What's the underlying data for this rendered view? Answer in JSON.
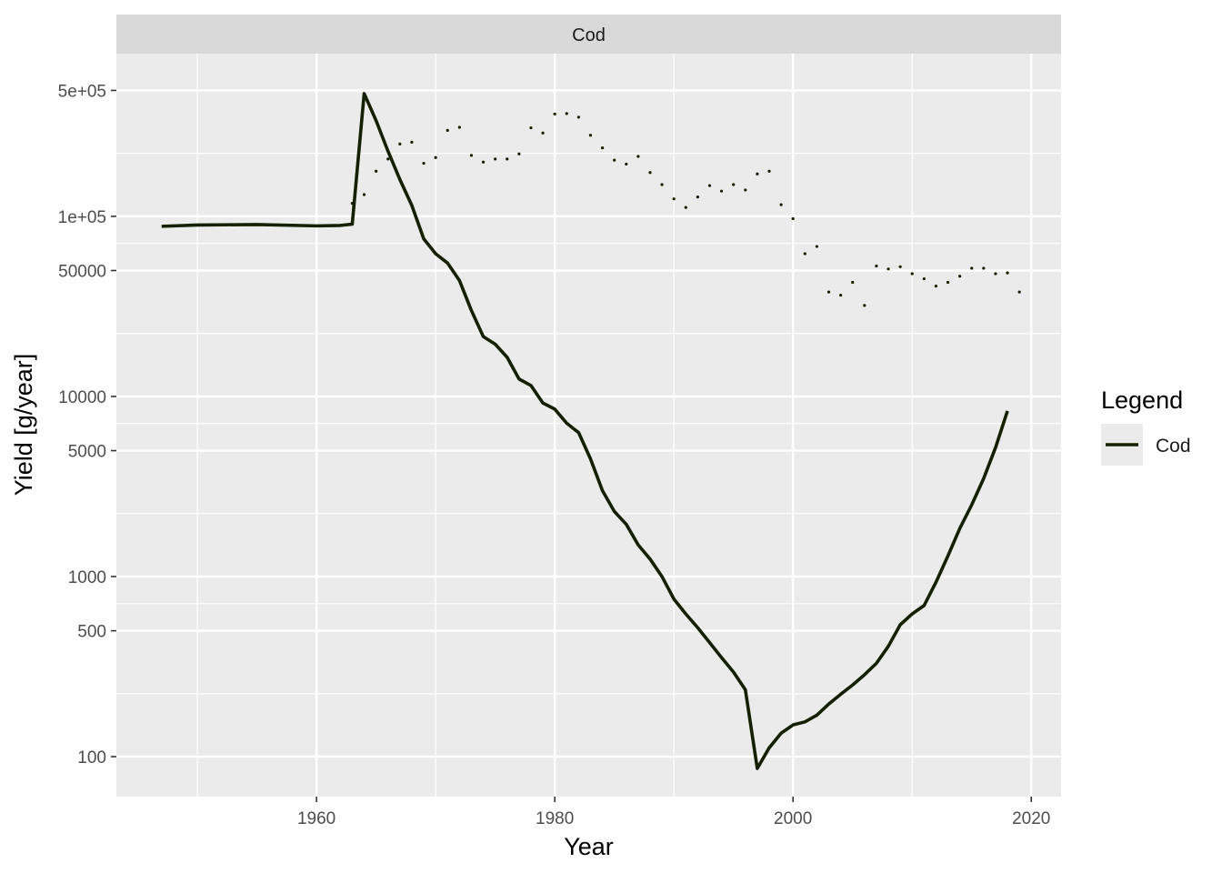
{
  "chart_data": {
    "type": "line",
    "facet_label": "Cod",
    "xlabel": "Year",
    "ylabel": "Yield [g/year]",
    "x_scale": "linear",
    "y_scale": "log10",
    "xlim": [
      1943.2,
      2022.5
    ],
    "ylim": [
      60,
      800000
    ],
    "x_ticks": [
      1960,
      1980,
      2000,
      2020
    ],
    "x_tick_labels": [
      "1960",
      "1980",
      "2000",
      "2020"
    ],
    "y_ticks": [
      100,
      500,
      1000,
      5000,
      10000,
      50000,
      100000,
      500000
    ],
    "y_tick_labels": [
      "100",
      "500",
      "1000",
      "5000",
      "10000",
      "50000",
      "1e+05",
      "5e+05"
    ],
    "grid": true,
    "legend": {
      "title": "Legend",
      "position": "right",
      "entries": [
        {
          "label": "Cod",
          "color": "#142000",
          "style": "solid"
        }
      ]
    },
    "series": [
      {
        "name": "Cod",
        "style": "solid",
        "color": "#142000",
        "points": [
          [
            1947,
            88000
          ],
          [
            1950,
            89500
          ],
          [
            1955,
            90000
          ],
          [
            1960,
            88500
          ],
          [
            1962,
            89000
          ],
          [
            1963,
            90500
          ],
          [
            1964,
            480000
          ],
          [
            1965,
            340000
          ],
          [
            1966,
            230000
          ],
          [
            1967,
            160000
          ],
          [
            1968,
            115000
          ],
          [
            1969,
            75000
          ],
          [
            1970,
            62000
          ],
          [
            1971,
            55000
          ],
          [
            1972,
            44000
          ],
          [
            1973,
            30000
          ],
          [
            1974,
            21500
          ],
          [
            1975,
            19500
          ],
          [
            1976,
            16500
          ],
          [
            1977,
            12500
          ],
          [
            1978,
            11500
          ],
          [
            1979,
            9200
          ],
          [
            1980,
            8500
          ],
          [
            1981,
            7100
          ],
          [
            1982,
            6300
          ],
          [
            1983,
            4500
          ],
          [
            1984,
            3000
          ],
          [
            1985,
            2300
          ],
          [
            1986,
            1950
          ],
          [
            1987,
            1500
          ],
          [
            1988,
            1250
          ],
          [
            1989,
            1000
          ],
          [
            1990,
            750
          ],
          [
            1991,
            620
          ],
          [
            1992,
            520
          ],
          [
            1993,
            430
          ],
          [
            1994,
            355
          ],
          [
            1995,
            295
          ],
          [
            1996,
            235
          ],
          [
            1997,
            86
          ],
          [
            1998,
            112
          ],
          [
            1999,
            135
          ],
          [
            2000,
            150
          ],
          [
            2001,
            156
          ],
          [
            2002,
            170
          ],
          [
            2003,
            196
          ],
          [
            2004,
            222
          ],
          [
            2005,
            250
          ],
          [
            2006,
            285
          ],
          [
            2007,
            330
          ],
          [
            2008,
            410
          ],
          [
            2009,
            540
          ],
          [
            2010,
            620
          ],
          [
            2011,
            690
          ],
          [
            2012,
            930
          ],
          [
            2013,
            1300
          ],
          [
            2014,
            1850
          ],
          [
            2015,
            2500
          ],
          [
            2016,
            3500
          ],
          [
            2017,
            5200
          ],
          [
            2018,
            8300
          ]
        ]
      },
      {
        "name": "",
        "style": "dotted",
        "color": "#142000",
        "points": [
          [
            1963,
            118000
          ],
          [
            1964,
            132000
          ],
          [
            1965,
            178000
          ],
          [
            1966,
            208000
          ],
          [
            1967,
            252000
          ],
          [
            1968,
            258000
          ],
          [
            1969,
            197000
          ],
          [
            1970,
            212000
          ],
          [
            1971,
            300000
          ],
          [
            1972,
            312000
          ],
          [
            1973,
            218000
          ],
          [
            1974,
            200000
          ],
          [
            1975,
            208000
          ],
          [
            1976,
            208000
          ],
          [
            1977,
            222000
          ],
          [
            1978,
            310000
          ],
          [
            1979,
            290000
          ],
          [
            1980,
            370000
          ],
          [
            1981,
            372000
          ],
          [
            1982,
            355000
          ],
          [
            1983,
            282000
          ],
          [
            1984,
            240000
          ],
          [
            1985,
            205000
          ],
          [
            1986,
            195000
          ],
          [
            1987,
            215000
          ],
          [
            1988,
            175000
          ],
          [
            1989,
            150000
          ],
          [
            1990,
            125000
          ],
          [
            1991,
            112000
          ],
          [
            1992,
            128000
          ],
          [
            1993,
            148000
          ],
          [
            1994,
            138000
          ],
          [
            1995,
            150000
          ],
          [
            1996,
            140000
          ],
          [
            1997,
            172000
          ],
          [
            1998,
            178000
          ],
          [
            1999,
            116000
          ],
          [
            2000,
            97000
          ],
          [
            2001,
            62000
          ],
          [
            2002,
            68000
          ],
          [
            2003,
            38000
          ],
          [
            2004,
            36500
          ],
          [
            2005,
            43000
          ],
          [
            2006,
            32000
          ],
          [
            2007,
            53000
          ],
          [
            2008,
            51000
          ],
          [
            2009,
            52500
          ],
          [
            2010,
            48000
          ],
          [
            2011,
            45000
          ],
          [
            2012,
            41000
          ],
          [
            2013,
            43000
          ],
          [
            2014,
            46500
          ],
          [
            2015,
            51500
          ],
          [
            2016,
            51500
          ],
          [
            2017,
            48000
          ],
          [
            2018,
            48500
          ],
          [
            2019,
            38000
          ]
        ]
      }
    ]
  }
}
